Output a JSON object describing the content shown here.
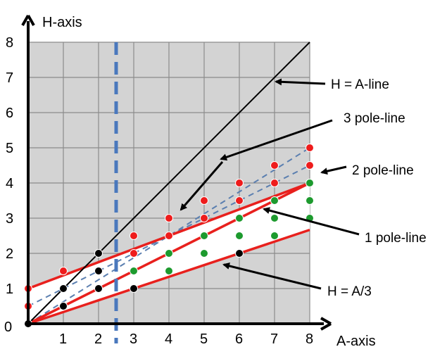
{
  "axes": {
    "x_title": "A-axis",
    "y_title": "H-axis",
    "origin_label": "0",
    "x_ticks": [
      "1",
      "2",
      "3",
      "4",
      "5",
      "6",
      "7",
      "8"
    ],
    "y_ticks": [
      "1",
      "2",
      "3",
      "4",
      "5",
      "6",
      "7",
      "8"
    ]
  },
  "annotations": {
    "h_equals_a": "H = A-line",
    "three_pole": "3 pole-line",
    "two_pole": "2 pole-line",
    "one_pole": "1 pole-line",
    "h_equals_a_third": "H = A/3"
  },
  "colors": {
    "plot_bg": "#d3d3d3",
    "grid": "#8c8c8c",
    "region_fill": "#ffffff",
    "red_line": "#e8201d",
    "dashed_line": "#5b7fb0",
    "vertical_dash": "#4a78bd",
    "red_point": "#ee1c1c",
    "green_point": "#1d9a2e",
    "black_point": "#000000"
  },
  "diagram": {
    "x_range": [
      0,
      8
    ],
    "y_range": [
      0,
      8
    ],
    "vertical_dashed_at_A": 2.5,
    "lines": {
      "h_equals_a": [
        [
          0,
          0
        ],
        [
          8,
          8
        ]
      ],
      "upper_red": [
        [
          0,
          1
        ],
        [
          8,
          4
        ]
      ],
      "lower_red": [
        [
          0,
          0
        ],
        [
          8,
          2.667
        ]
      ],
      "middle_red": [
        [
          0,
          0
        ],
        [
          8,
          4
        ]
      ],
      "dashed_upper": [
        [
          0,
          0.5
        ],
        [
          8,
          4.5
        ]
      ],
      "dashed_lower": [
        [
          0,
          0
        ],
        [
          8,
          5
        ]
      ]
    },
    "points": [
      {
        "a": 0,
        "h": 0,
        "color": "black"
      },
      {
        "a": 0,
        "h": 0.5,
        "color": "red"
      },
      {
        "a": 0,
        "h": 1,
        "color": "red"
      },
      {
        "a": 1,
        "h": 0.5,
        "color": "black"
      },
      {
        "a": 1,
        "h": 1,
        "color": "black"
      },
      {
        "a": 1,
        "h": 1.5,
        "color": "red"
      },
      {
        "a": 2,
        "h": 1,
        "color": "black"
      },
      {
        "a": 2,
        "h": 1.5,
        "color": "black"
      },
      {
        "a": 2,
        "h": 2,
        "color": "black"
      },
      {
        "a": 3,
        "h": 1,
        "color": "black"
      },
      {
        "a": 3,
        "h": 1.5,
        "color": "green"
      },
      {
        "a": 3,
        "h": 2,
        "color": "red"
      },
      {
        "a": 3,
        "h": 2.5,
        "color": "red"
      },
      {
        "a": 4,
        "h": 1.5,
        "color": "green"
      },
      {
        "a": 4,
        "h": 2,
        "color": "green"
      },
      {
        "a": 4,
        "h": 2.5,
        "color": "red"
      },
      {
        "a": 4,
        "h": 3,
        "color": "red"
      },
      {
        "a": 5,
        "h": 2,
        "color": "green"
      },
      {
        "a": 5,
        "h": 2.5,
        "color": "green"
      },
      {
        "a": 5,
        "h": 3,
        "color": "red"
      },
      {
        "a": 5,
        "h": 3.5,
        "color": "red"
      },
      {
        "a": 6,
        "h": 2,
        "color": "black"
      },
      {
        "a": 6,
        "h": 2.5,
        "color": "green"
      },
      {
        "a": 6,
        "h": 3,
        "color": "green"
      },
      {
        "a": 6,
        "h": 3.5,
        "color": "red"
      },
      {
        "a": 6,
        "h": 4,
        "color": "red"
      },
      {
        "a": 7,
        "h": 2.5,
        "color": "green"
      },
      {
        "a": 7,
        "h": 3,
        "color": "green"
      },
      {
        "a": 7,
        "h": 3.5,
        "color": "green"
      },
      {
        "a": 7,
        "h": 4,
        "color": "red"
      },
      {
        "a": 7,
        "h": 4.5,
        "color": "red"
      },
      {
        "a": 8,
        "h": 3,
        "color": "green"
      },
      {
        "a": 8,
        "h": 3.5,
        "color": "green"
      },
      {
        "a": 8,
        "h": 4,
        "color": "green"
      },
      {
        "a": 8,
        "h": 4.5,
        "color": "red"
      },
      {
        "a": 8,
        "h": 5,
        "color": "red"
      }
    ]
  }
}
